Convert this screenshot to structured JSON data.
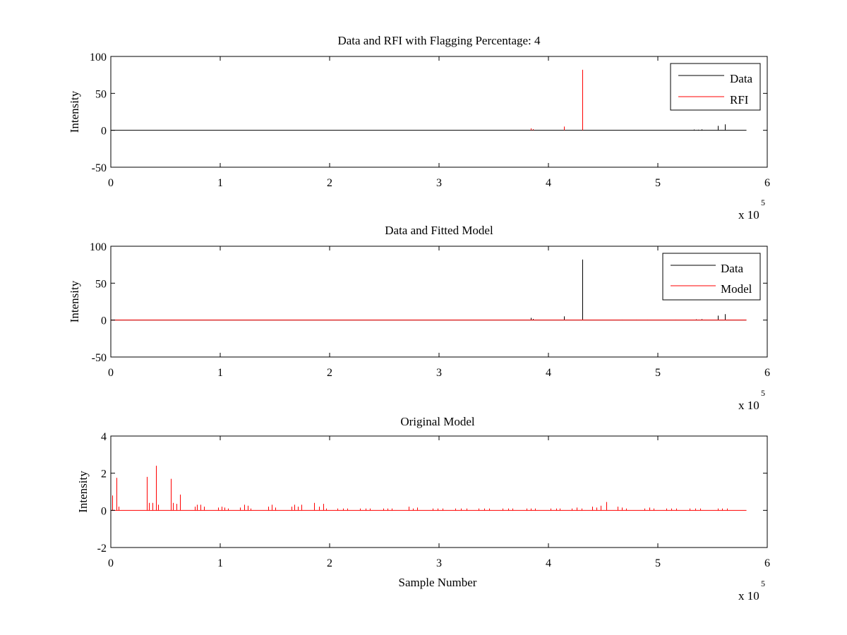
{
  "chart_data": [
    {
      "type": "line",
      "title": "Data and RFI with Flagging Percentage: 4",
      "xlabel": "",
      "ylabel": "Intensity",
      "xlim": [
        0,
        600000
      ],
      "ylim": [
        -50,
        100
      ],
      "x_ticks": [
        0,
        1,
        2,
        3,
        4,
        5,
        6
      ],
      "y_ticks": [
        -50,
        0,
        50,
        100
      ],
      "x_exponent": {
        "base": "x 10",
        "power": "5"
      },
      "x_data_end": 581000,
      "legend": {
        "position": "top-right",
        "entries": [
          "Data",
          "RFI"
        ]
      },
      "series": [
        {
          "name": "Data",
          "color": "#000000",
          "baseline": 0,
          "spikes": [
            [
              533000,
              1.0
            ],
            [
              537000,
              0.8
            ],
            [
              540000,
              1.2
            ],
            [
              555000,
              6.0
            ],
            [
              561000,
              8.0
            ]
          ]
        },
        {
          "name": "RFI",
          "color": "#ff0000",
          "baseline": null,
          "spikes": [
            [
              384000,
              2.5
            ],
            [
              386000,
              1.5
            ],
            [
              414000,
              5.0
            ],
            [
              431000,
              82.0
            ]
          ]
        }
      ]
    },
    {
      "type": "line",
      "title": "Data and Fitted Model",
      "xlabel": "",
      "ylabel": "Intensity",
      "xlim": [
        0,
        600000
      ],
      "ylim": [
        -50,
        100
      ],
      "x_ticks": [
        0,
        1,
        2,
        3,
        4,
        5,
        6
      ],
      "y_ticks": [
        -50,
        0,
        50,
        100
      ],
      "x_exponent": {
        "base": "x 10",
        "power": "5"
      },
      "x_data_end": 581000,
      "legend": {
        "position": "top-right",
        "entries": [
          "Data",
          "Model"
        ]
      },
      "series": [
        {
          "name": "Data",
          "color": "#000000",
          "baseline": 0,
          "spikes": [
            [
              384000,
              3.0
            ],
            [
              386000,
              1.5
            ],
            [
              414000,
              5.0
            ],
            [
              431000,
              82.0
            ],
            [
              467000,
              0.5
            ],
            [
              480000,
              0.5
            ],
            [
              490000,
              0.5
            ],
            [
              516000,
              0.5
            ],
            [
              535000,
              1.0
            ],
            [
              540000,
              1.2
            ],
            [
              555000,
              6.0
            ],
            [
              561000,
              8.0
            ]
          ]
        },
        {
          "name": "Model",
          "color": "#ff0000",
          "baseline": 0,
          "spikes": [
            [
              384000,
              0.5
            ],
            [
              431000,
              0.8
            ]
          ]
        }
      ]
    },
    {
      "type": "line",
      "title": "Original Model",
      "xlabel": "Sample Number",
      "ylabel": "Intensity",
      "xlim": [
        0,
        600000
      ],
      "ylim": [
        -2,
        4
      ],
      "x_ticks": [
        0,
        1,
        2,
        3,
        4,
        5,
        6
      ],
      "y_ticks": [
        -2,
        0,
        2,
        4
      ],
      "x_exponent": {
        "base": "x 10",
        "power": "5"
      },
      "x_data_end": 581000,
      "legend": null,
      "series": [
        {
          "name": "Model",
          "color": "#ff0000",
          "baseline": 0,
          "spikes": [
            [
              1500,
              0.8
            ],
            [
              5000,
              1.75
            ],
            [
              7000,
              0.2
            ],
            [
              33000,
              1.8
            ],
            [
              35000,
              0.4
            ],
            [
              38000,
              0.4
            ],
            [
              41000,
              2.4
            ],
            [
              43000,
              0.3
            ],
            [
              55000,
              1.7
            ],
            [
              57000,
              0.4
            ],
            [
              60000,
              0.35
            ],
            [
              63000,
              0.85
            ],
            [
              77000,
              0.2
            ],
            [
              79000,
              0.3
            ],
            [
              82000,
              0.3
            ],
            [
              85000,
              0.2
            ],
            [
              98000,
              0.15
            ],
            [
              101000,
              0.2
            ],
            [
              104000,
              0.15
            ],
            [
              107000,
              0.1
            ],
            [
              118000,
              0.15
            ],
            [
              122000,
              0.3
            ],
            [
              125000,
              0.25
            ],
            [
              128000,
              0.1
            ],
            [
              144000,
              0.2
            ],
            [
              147000,
              0.3
            ],
            [
              150000,
              0.15
            ],
            [
              165000,
              0.2
            ],
            [
              168000,
              0.3
            ],
            [
              171000,
              0.2
            ],
            [
              174000,
              0.3
            ],
            [
              186000,
              0.4
            ],
            [
              190000,
              0.2
            ],
            [
              194000,
              0.35
            ],
            [
              197000,
              0.1
            ],
            [
              207000,
              0.1
            ],
            [
              212000,
              0.1
            ],
            [
              216000,
              0.1
            ],
            [
              228000,
              0.1
            ],
            [
              233000,
              0.1
            ],
            [
              237000,
              0.1
            ],
            [
              249000,
              0.1
            ],
            [
              253000,
              0.1
            ],
            [
              257000,
              0.1
            ],
            [
              272000,
              0.2
            ],
            [
              276000,
              0.1
            ],
            [
              280000,
              0.15
            ],
            [
              294000,
              0.1
            ],
            [
              299000,
              0.1
            ],
            [
              303000,
              0.1
            ],
            [
              315000,
              0.1
            ],
            [
              320000,
              0.1
            ],
            [
              325000,
              0.1
            ],
            [
              336000,
              0.1
            ],
            [
              341000,
              0.1
            ],
            [
              346000,
              0.1
            ],
            [
              358000,
              0.1
            ],
            [
              363000,
              0.1
            ],
            [
              367000,
              0.1
            ],
            [
              380000,
              0.1
            ],
            [
              384000,
              0.1
            ],
            [
              388000,
              0.1
            ],
            [
              402000,
              0.1
            ],
            [
              407000,
              0.1
            ],
            [
              410000,
              0.1
            ],
            [
              421000,
              0.1
            ],
            [
              426000,
              0.15
            ],
            [
              430000,
              0.1
            ],
            [
              440000,
              0.2
            ],
            [
              444000,
              0.15
            ],
            [
              448000,
              0.25
            ],
            [
              453000,
              0.45
            ],
            [
              463000,
              0.2
            ],
            [
              467000,
              0.15
            ],
            [
              471000,
              0.1
            ],
            [
              488000,
              0.1
            ],
            [
              492000,
              0.15
            ],
            [
              496000,
              0.1
            ],
            [
              508000,
              0.1
            ],
            [
              512000,
              0.1
            ],
            [
              517000,
              0.1
            ],
            [
              529000,
              0.1
            ],
            [
              534000,
              0.1
            ],
            [
              539000,
              0.1
            ],
            [
              555000,
              0.1
            ],
            [
              559000,
              0.1
            ],
            [
              563000,
              0.1
            ]
          ]
        }
      ]
    }
  ]
}
